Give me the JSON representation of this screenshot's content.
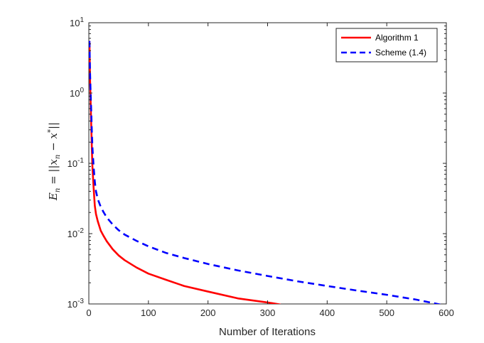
{
  "chart_data": {
    "type": "line",
    "title": "",
    "xlabel": "Number of Iterations",
    "ylabel": "E_n = ||x_n - x*||",
    "ylabel_parts": {
      "lhs": "E",
      "lhs_sub": "n",
      "eq": " = ||",
      "var": "x",
      "var_sub": "n",
      "minus": " − ",
      "star_var": "x",
      "star": "*",
      "close": "||"
    },
    "xscale": "linear",
    "yscale": "log",
    "xlim": [
      0,
      600
    ],
    "ylim": [
      0.001,
      10
    ],
    "xticks": [
      0,
      100,
      200,
      300,
      400,
      500,
      600
    ],
    "xtick_labels": [
      "0",
      "100",
      "200",
      "300",
      "400",
      "500",
      "600"
    ],
    "yticks": [
      0.001,
      0.01,
      0.1,
      1,
      10
    ],
    "ytick_labels": [
      {
        "base": "10",
        "exp": "-3"
      },
      {
        "base": "10",
        "exp": "-2"
      },
      {
        "base": "10",
        "exp": "-1"
      },
      {
        "base": "10",
        "exp": "0"
      },
      {
        "base": "10",
        "exp": "1"
      }
    ],
    "grid": false,
    "legend_position": "top-right",
    "series": [
      {
        "name": "Algorithm 1",
        "color": "#ff0000",
        "style": "solid",
        "x": [
          1,
          2,
          3,
          4,
          5,
          6,
          8,
          10,
          12,
          15,
          20,
          25,
          30,
          40,
          50,
          60,
          80,
          100,
          130,
          160,
          200,
          250,
          300,
          322
        ],
        "y": [
          5.5,
          1.6,
          0.75,
          0.35,
          0.17,
          0.09,
          0.045,
          0.025,
          0.019,
          0.015,
          0.011,
          0.0092,
          0.0078,
          0.006,
          0.0049,
          0.0042,
          0.0033,
          0.0027,
          0.0022,
          0.0018,
          0.0015,
          0.0012,
          0.00105,
          0.00098
        ]
      },
      {
        "name": "Scheme (1.4)",
        "color": "#0000ff",
        "style": "dashed",
        "x": [
          1,
          2,
          3,
          4,
          5,
          6,
          8,
          10,
          12,
          15,
          20,
          25,
          30,
          40,
          50,
          60,
          80,
          100,
          130,
          160,
          200,
          250,
          300,
          350,
          400,
          450,
          500,
          550,
          590
        ],
        "y": [
          5.5,
          2.0,
          1.0,
          0.55,
          0.29,
          0.17,
          0.09,
          0.055,
          0.04,
          0.031,
          0.024,
          0.02,
          0.017,
          0.0135,
          0.0112,
          0.0097,
          0.0079,
          0.0066,
          0.0053,
          0.0045,
          0.0037,
          0.003,
          0.0025,
          0.0021,
          0.0018,
          0.00155,
          0.00135,
          0.00115,
          0.00098
        ]
      }
    ]
  }
}
